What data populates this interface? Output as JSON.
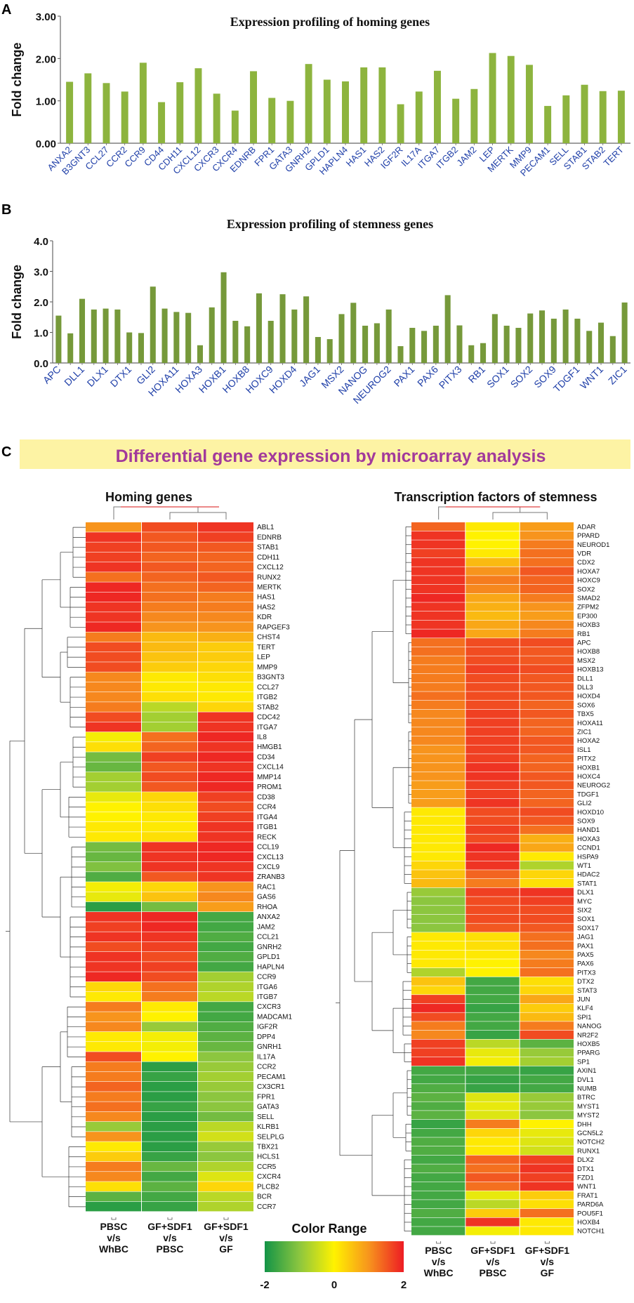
{
  "chart_data": [
    {
      "panel": "A",
      "type": "bar",
      "title": "Expression profiling of homing genes",
      "ylabel": "Fold change",
      "ylim": [
        0,
        3
      ],
      "yticks": [
        "0.00",
        "1.00",
        "2.00",
        "3.00"
      ],
      "color": "#8DB43E",
      "categories": [
        "ANXA2",
        "B3GNT3",
        "CCL27",
        "CCR2",
        "CCR9",
        "CD44",
        "CDH11",
        "CXCL12",
        "CXCR3",
        "CXCR4",
        "EDNRB",
        "FPR1",
        "GATA3",
        "GNRH2",
        "GPLD1",
        "HAPLN4",
        "HAS1",
        "HAS2",
        "IGF2R",
        "IL17A",
        "ITGA7",
        "ITGB2",
        "JAM2",
        "LEP",
        "MERTK",
        "MMP9",
        "PECAM1",
        "SELL",
        "STAB1",
        "STAB2",
        "TERT"
      ],
      "values": [
        1.45,
        1.65,
        1.42,
        1.22,
        1.9,
        0.97,
        1.44,
        1.77,
        1.17,
        0.77,
        1.7,
        1.07,
        1.0,
        1.87,
        1.5,
        1.46,
        1.79,
        1.79,
        0.92,
        1.22,
        1.71,
        1.05,
        1.28,
        2.13,
        2.06,
        1.85,
        0.88,
        1.13,
        1.38,
        1.23,
        1.24
      ]
    },
    {
      "panel": "B",
      "type": "bar",
      "title": "Expression profiling of stemness genes",
      "ylabel": "Fold change",
      "ylim": [
        0,
        4
      ],
      "yticks": [
        "0.0",
        "1.0",
        "2.0",
        "3.0",
        "4.0"
      ],
      "color": "#76993A",
      "categories": [
        "APC",
        "",
        "DLL1",
        "",
        "DLX1",
        "",
        "DTX1",
        "",
        "GLI2",
        "",
        "HOXA11",
        "",
        "HOXA3",
        "",
        "HOXB1",
        "",
        "HOXB8",
        "",
        "HOXC9",
        "",
        "HOXD4",
        "",
        "JAG1",
        "",
        "MSX2",
        "",
        "NANOG",
        "",
        "NEUROG2",
        "",
        "PAX1",
        "",
        "PAX6",
        "",
        "PITX3",
        "",
        "RB1",
        "",
        "SOX1",
        "",
        "SOX2",
        "",
        "SOX9",
        "",
        "TDGF1",
        "",
        "WNT1",
        "",
        "ZIC1"
      ],
      "values": [
        1.55,
        0.97,
        2.1,
        1.75,
        1.78,
        1.75,
        1.0,
        0.98,
        2.5,
        1.78,
        1.67,
        1.64,
        0.58,
        1.82,
        2.97,
        1.38,
        1.2,
        2.28,
        1.38,
        2.25,
        1.75,
        2.18,
        0.85,
        0.78,
        1.6,
        1.97,
        1.22,
        1.3,
        1.75,
        0.55,
        1.15,
        1.05,
        1.22,
        2.22,
        1.23,
        0.58,
        0.65,
        1.6,
        1.22,
        1.15,
        1.62,
        1.72,
        1.45,
        1.75,
        1.45,
        1.05,
        1.32,
        0.88,
        1.98
      ]
    },
    {
      "panel": "C",
      "type": "heatmap",
      "title": "Differential gene expression by microarray analysis",
      "colorbar": {
        "label": "Color Range",
        "min": "-2",
        "mid": "0",
        "max": "2",
        "stops": [
          "#139447",
          "#8CC63F",
          "#FFF200",
          "#F7941D",
          "#ED1C24"
        ]
      },
      "maps": [
        {
          "subtitle": "Homing genes",
          "columns": [
            "PBSC\nv/s\nWhBC",
            "GF+SDF1\nv/s\nPBSC",
            "GF+SDF1\nv/s\nGF"
          ],
          "rows": [
            "ABL1",
            "EDNRB",
            "STAB1",
            "CDH11",
            "CXCL12",
            "RUNX2",
            "MERTK",
            "HAS1",
            "HAS2",
            "KDR",
            "RAPGEF3",
            "CHST4",
            "TERT",
            "LEP",
            "MMP9",
            "B3GNT3",
            "CCL27",
            "ITGB2",
            "STAB2",
            "CDC42",
            "ITGA7",
            "IL8",
            "HMGB1",
            "CD34",
            "CXCL14",
            "MMP14",
            "PROM1",
            "CD38",
            "CCR4",
            "ITGA4",
            "ITGB1",
            "RECK",
            "CCL19",
            "CXCL13",
            "CXCL9",
            "ZRANB3",
            "RAC1",
            "GAS6",
            "RHOA",
            "ANXA2",
            "JAM2",
            "CCL21",
            "GNRH2",
            "GPLD1",
            "HAPLN4",
            "CCR9",
            "ITGA6",
            "ITGB7",
            "CXCR3",
            "MADCAM1",
            "IGF2R",
            "DPP4",
            "GNRH1",
            "IL17A",
            "CCR2",
            "PECAM1",
            "CX3CR1",
            "FPR1",
            "GATA3",
            "SELL",
            "KLRB1",
            "SELPLG",
            "TBX21",
            "HCLS1",
            "CCR5",
            "CXCR4",
            "PLCB2",
            "BCR",
            "CCR7"
          ],
          "values": [
            [
              1.0,
              1.6,
              1.8
            ],
            [
              1.8,
              1.5,
              1.7
            ],
            [
              1.7,
              1.5,
              1.5
            ],
            [
              1.7,
              1.4,
              1.4
            ],
            [
              1.8,
              1.5,
              1.4
            ],
            [
              1.3,
              1.4,
              1.5
            ],
            [
              1.9,
              1.3,
              1.4
            ],
            [
              1.9,
              1.3,
              1.2
            ],
            [
              1.8,
              1.2,
              1.2
            ],
            [
              1.8,
              1.1,
              1.1
            ],
            [
              1.9,
              1.0,
              1.0
            ],
            [
              1.2,
              0.6,
              0.7
            ],
            [
              1.6,
              0.6,
              0.4
            ],
            [
              1.6,
              0.5,
              0.4
            ],
            [
              1.6,
              0.4,
              0.3
            ],
            [
              1.1,
              0.1,
              0.2
            ],
            [
              1.1,
              0.1,
              0.1
            ],
            [
              1.1,
              0.2,
              0.1
            ],
            [
              1.2,
              -0.6,
              0.3
            ],
            [
              1.6,
              -0.8,
              1.8
            ],
            [
              1.8,
              -0.8,
              1.8
            ],
            [
              -0.1,
              1.3,
              1.9
            ],
            [
              0.2,
              1.4,
              1.8
            ],
            [
              -1.2,
              1.7,
              1.9
            ],
            [
              -1.3,
              1.5,
              1.8
            ],
            [
              -0.8,
              1.6,
              1.9
            ],
            [
              -0.8,
              1.5,
              1.9
            ],
            [
              -0.2,
              0.3,
              1.7
            ],
            [
              0.0,
              0.2,
              1.6
            ],
            [
              0.0,
              0.1,
              1.7
            ],
            [
              0.1,
              0.1,
              1.8
            ],
            [
              0.1,
              0.2,
              1.8
            ],
            [
              -1.2,
              1.8,
              1.9
            ],
            [
              -1.3,
              1.8,
              1.9
            ],
            [
              -1.1,
              1.8,
              1.8
            ],
            [
              -1.5,
              1.5,
              1.8
            ],
            [
              -0.1,
              0.3,
              1.0
            ],
            [
              -0.2,
              0.5,
              1.1
            ],
            [
              -1.8,
              -1.2,
              0.9
            ],
            [
              1.8,
              1.9,
              -1.6
            ],
            [
              1.7,
              1.9,
              -1.6
            ],
            [
              1.8,
              1.8,
              -1.5
            ],
            [
              1.6,
              1.7,
              -1.6
            ],
            [
              1.8,
              1.6,
              -1.5
            ],
            [
              1.8,
              1.7,
              -1.6
            ],
            [
              1.9,
              1.6,
              -0.8
            ],
            [
              0.3,
              1.3,
              -0.7
            ],
            [
              0.1,
              1.2,
              -0.6
            ],
            [
              1.2,
              0.1,
              -1.6
            ],
            [
              1.0,
              0.0,
              -1.6
            ],
            [
              1.1,
              -0.9,
              -1.5
            ],
            [
              0.1,
              -0.1,
              -1.4
            ],
            [
              0.1,
              -0.1,
              -1.3
            ],
            [
              1.6,
              0.0,
              -1.0
            ],
            [
              1.2,
              -1.8,
              -0.9
            ],
            [
              1.2,
              -1.7,
              -0.8
            ],
            [
              1.4,
              -1.8,
              -0.9
            ],
            [
              1.2,
              -1.8,
              -1.0
            ],
            [
              1.3,
              -1.7,
              -1.0
            ],
            [
              1.1,
              -1.8,
              -1.2
            ],
            [
              -0.9,
              -1.8,
              -0.6
            ],
            [
              1.0,
              -1.8,
              -0.4
            ],
            [
              0.1,
              -1.8,
              -0.9
            ],
            [
              0.4,
              -1.7,
              -1.0
            ],
            [
              1.2,
              -1.3,
              -0.7
            ],
            [
              1.1,
              -1.6,
              -0.3
            ],
            [
              0.2,
              -1.4,
              0.3
            ],
            [
              -1.4,
              -1.6,
              -0.6
            ],
            [
              -1.8,
              -1.7,
              -0.7
            ]
          ]
        },
        {
          "subtitle": "Transcription factors of stemness",
          "columns": [
            "PBSC\nv/s\nWhBC",
            "GF+SDF1\nv/s\nPBSC",
            "GF+SDF1\nv/s\nGF"
          ],
          "rows": [
            "ADAR",
            "PPARD",
            "NEUROD1",
            "VDR",
            "CDX2",
            "HOXA7",
            "HOXC9",
            "SOX2",
            "SMAD2",
            "ZFPM2",
            "EP300",
            "HOXB3",
            "RB1",
            "APC",
            "HOXB8",
            "MSX2",
            "HOXB13",
            "DLL1",
            "DLL3",
            "HOXD4",
            "SOX6",
            "TBX5",
            "HOXA11",
            "ZIC1",
            "HOXA2",
            "ISL1",
            "PITX2",
            "HOXB1",
            "HOXC4",
            "NEUROG2",
            "TDGF1",
            "GLI2",
            "HOXD10",
            "SOX9",
            "HAND1",
            "HOXA3",
            "CCND1",
            "HSPA9",
            "WT1",
            "HDAC2",
            "STAT1",
            "DLX1",
            "MYC",
            "SIX2",
            "SOX1",
            "SOX17",
            "JAG1",
            "PAX1",
            "PAX5",
            "PAX6",
            "PITX3",
            "DTX2",
            "STAT3",
            "JUN",
            "KLF4",
            "SPI1",
            "NANOG",
            "NR2F2",
            "HOXB5",
            "PPARG",
            "SP1",
            "AXIN1",
            "DVL1",
            "NUMB",
            "BTRC",
            "MYST1",
            "MYST2",
            "DHH",
            "GCN5L2",
            "NOTCH2",
            "RUNX1",
            "DLX2",
            "DTX1",
            "FZD1",
            "WNT1",
            "FRAT1",
            "PARD6A",
            "POU5F1",
            "HOXB4",
            "NOTCH1"
          ],
          "values": [
            [
              1.4,
              0.1,
              0.9
            ],
            [
              1.8,
              0.0,
              1.0
            ],
            [
              1.8,
              0.0,
              1.2
            ],
            [
              1.7,
              0.1,
              1.3
            ],
            [
              1.8,
              0.6,
              1.3
            ],
            [
              1.8,
              1.0,
              1.5
            ],
            [
              1.8,
              1.2,
              1.4
            ],
            [
              1.8,
              1.1,
              1.4
            ],
            [
              1.9,
              0.8,
              1.2
            ],
            [
              1.8,
              0.7,
              1.0
            ],
            [
              1.8,
              0.6,
              0.9
            ],
            [
              1.8,
              0.8,
              1.1
            ],
            [
              1.9,
              0.8,
              1.2
            ],
            [
              1.3,
              1.6,
              1.6
            ],
            [
              1.3,
              1.6,
              1.5
            ],
            [
              1.2,
              1.6,
              1.5
            ],
            [
              1.2,
              1.7,
              1.6
            ],
            [
              1.2,
              1.6,
              1.5
            ],
            [
              1.2,
              1.6,
              1.5
            ],
            [
              1.3,
              1.6,
              1.5
            ],
            [
              1.2,
              1.6,
              1.4
            ],
            [
              1.1,
              1.7,
              1.5
            ],
            [
              1.1,
              1.7,
              1.4
            ],
            [
              1.1,
              1.7,
              1.4
            ],
            [
              1.1,
              1.7,
              1.5
            ],
            [
              1.0,
              1.7,
              1.5
            ],
            [
              1.0,
              1.7,
              1.4
            ],
            [
              1.0,
              1.8,
              1.4
            ],
            [
              1.0,
              1.8,
              1.5
            ],
            [
              0.9,
              1.7,
              1.5
            ],
            [
              0.9,
              1.7,
              1.4
            ],
            [
              0.9,
              1.8,
              1.4
            ],
            [
              0.1,
              1.6,
              1.6
            ],
            [
              0.1,
              1.6,
              1.5
            ],
            [
              0.1,
              1.7,
              1.3
            ],
            [
              0.1,
              1.6,
              0.7
            ],
            [
              0.1,
              1.9,
              0.8
            ],
            [
              0.1,
              1.8,
              0.1
            ],
            [
              0.3,
              1.8,
              -0.7
            ],
            [
              0.5,
              1.4,
              0.3
            ],
            [
              0.6,
              1.2,
              0.2
            ],
            [
              -0.9,
              1.7,
              1.8
            ],
            [
              -1.0,
              1.6,
              1.7
            ],
            [
              -1.0,
              1.6,
              1.6
            ],
            [
              -1.0,
              1.6,
              1.6
            ],
            [
              -1.0,
              1.5,
              1.5
            ],
            [
              0.1,
              0.2,
              1.3
            ],
            [
              0.1,
              0.2,
              1.3
            ],
            [
              0.1,
              0.1,
              1.1
            ],
            [
              0.1,
              0.0,
              1.2
            ],
            [
              -0.7,
              0.0,
              1.3
            ],
            [
              0.5,
              -1.6,
              0.2
            ],
            [
              0.3,
              -1.6,
              0.3
            ],
            [
              1.7,
              -1.6,
              0.8
            ],
            [
              1.9,
              -1.7,
              0.4
            ],
            [
              1.6,
              -1.6,
              0.6
            ],
            [
              1.2,
              -1.6,
              1.2
            ],
            [
              1.1,
              -1.7,
              1.6
            ],
            [
              1.7,
              -0.6,
              -1.4
            ],
            [
              1.7,
              -0.2,
              -0.9
            ],
            [
              1.8,
              -0.1,
              -0.8
            ],
            [
              -1.6,
              -1.6,
              -1.7
            ],
            [
              -1.6,
              -1.7,
              -1.6
            ],
            [
              -1.5,
              -1.7,
              -1.6
            ],
            [
              -1.4,
              -0.3,
              -0.9
            ],
            [
              -1.5,
              -0.2,
              -0.9
            ],
            [
              -1.4,
              -0.3,
              -1.0
            ],
            [
              -1.7,
              1.2,
              0.0
            ],
            [
              -1.6,
              0.3,
              -0.2
            ],
            [
              -1.5,
              0.1,
              -0.3
            ],
            [
              -1.5,
              0.1,
              -0.4
            ],
            [
              -1.6,
              1.4,
              1.7
            ],
            [
              -1.5,
              1.3,
              1.8
            ],
            [
              -1.6,
              1.5,
              1.7
            ],
            [
              -1.6,
              1.3,
              1.8
            ],
            [
              -1.6,
              -0.2,
              0.4
            ],
            [
              -1.6,
              -0.6,
              0.2
            ],
            [
              -1.5,
              0.4,
              1.3
            ],
            [
              -1.6,
              1.8,
              0.1
            ],
            [
              -1.6,
              -0.1,
              0.1
            ]
          ]
        }
      ]
    }
  ]
}
